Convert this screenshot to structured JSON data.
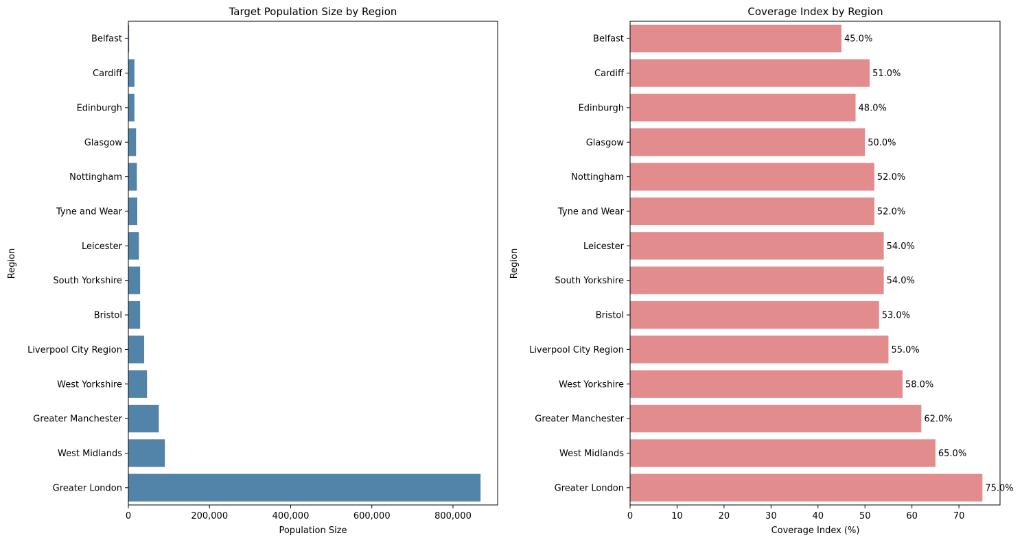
{
  "chart_data": [
    {
      "type": "bar",
      "orientation": "horizontal",
      "title": "Target Population Size by Region",
      "xlabel": "Population Size",
      "ylabel": "Region",
      "xlim": [
        0,
        910000
      ],
      "xticks": [
        0,
        200000,
        400000,
        600000,
        800000
      ],
      "xtick_labels": [
        "0",
        "200,000",
        "400,000",
        "600,000",
        "800,000"
      ],
      "bar_color": "#5283a8",
      "categories": [
        "Belfast",
        "Cardiff",
        "Edinburgh",
        "Glasgow",
        "Nottingham",
        "Tyne and Wear",
        "Leicester",
        "South Yorkshire",
        "Bristol",
        "Liverpool City Region",
        "West Yorkshire",
        "Greater Manchester",
        "West Midlands",
        "Greater London"
      ],
      "values": [
        2000,
        15000,
        15000,
        19000,
        21000,
        22000,
        26000,
        29000,
        29000,
        39000,
        46000,
        75000,
        90000,
        868000
      ],
      "grid": false
    },
    {
      "type": "bar",
      "orientation": "horizontal",
      "title": "Coverage Index by Region",
      "xlabel": "Coverage Index (%)",
      "ylabel": "Region",
      "xlim": [
        0,
        78.75
      ],
      "xticks": [
        0,
        10,
        20,
        30,
        40,
        50,
        60,
        70
      ],
      "xtick_labels": [
        "0",
        "10",
        "20",
        "30",
        "40",
        "50",
        "60",
        "70"
      ],
      "bar_color": "#e38c8d",
      "categories": [
        "Belfast",
        "Cardiff",
        "Edinburgh",
        "Glasgow",
        "Nottingham",
        "Tyne and Wear",
        "Leicester",
        "South Yorkshire",
        "Bristol",
        "Liverpool City Region",
        "West Yorkshire",
        "Greater Manchester",
        "West Midlands",
        "Greater London"
      ],
      "values": [
        45.0,
        51.0,
        48.0,
        50.0,
        52.0,
        52.0,
        54.0,
        54.0,
        53.0,
        55.0,
        58.0,
        62.0,
        65.0,
        75.0
      ],
      "data_labels": [
        "45.0%",
        "51.0%",
        "48.0%",
        "50.0%",
        "52.0%",
        "52.0%",
        "54.0%",
        "54.0%",
        "53.0%",
        "55.0%",
        "58.0%",
        "62.0%",
        "65.0%",
        "75.0%"
      ],
      "grid": false
    }
  ]
}
